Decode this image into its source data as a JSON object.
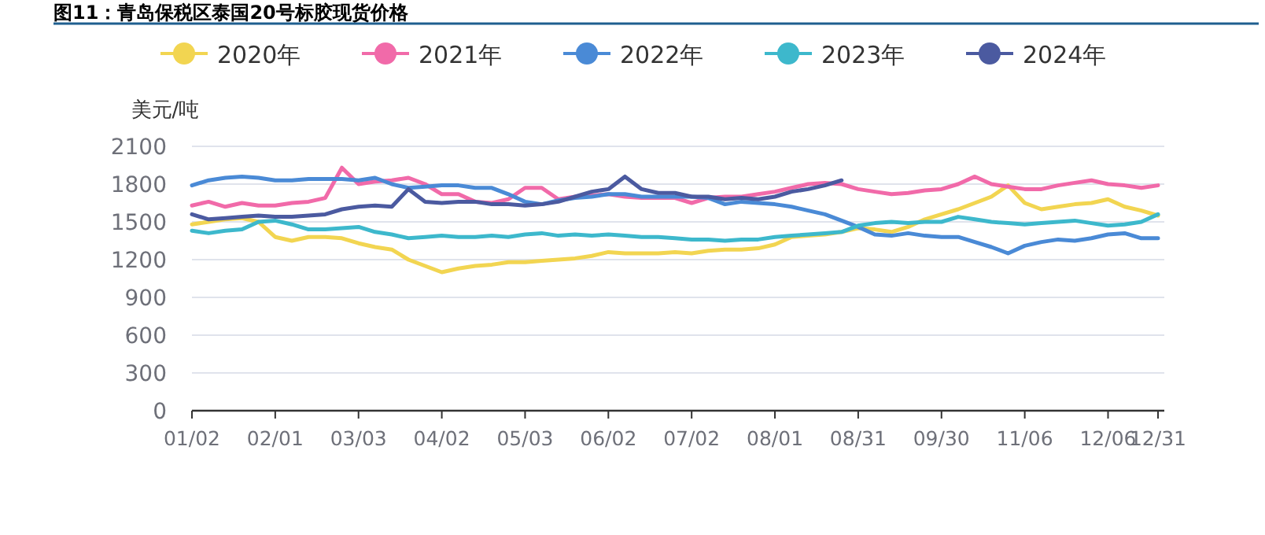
{
  "chart_data": {
    "type": "line",
    "title": "图11：青岛保税区泰国20号标胶现货价格",
    "ylabel": "美元/吨",
    "categories": [
      "01/02",
      null,
      null,
      null,
      null,
      "02/01",
      null,
      null,
      null,
      null,
      "03/03",
      null,
      null,
      null,
      null,
      "04/02",
      null,
      null,
      null,
      null,
      "05/03",
      null,
      null,
      null,
      null,
      "06/02",
      null,
      null,
      null,
      null,
      "07/02",
      null,
      null,
      null,
      null,
      "08/01",
      null,
      null,
      null,
      null,
      "08/31",
      null,
      null,
      null,
      null,
      "09/30",
      null,
      null,
      null,
      null,
      "11/06",
      null,
      null,
      null,
      null,
      "12/06",
      null,
      null,
      "12/31"
    ],
    "series": [
      {
        "name": "2020年",
        "color": "#f2d551",
        "values": [
          1480,
          1500,
          1520,
          1530,
          1500,
          1380,
          1350,
          1380,
          1380,
          1370,
          1330,
          1300,
          1280,
          1200,
          1150,
          1100,
          1130,
          1150,
          1160,
          1180,
          1180,
          1190,
          1200,
          1210,
          1230,
          1260,
          1250,
          1250,
          1250,
          1260,
          1250,
          1270,
          1280,
          1280,
          1290,
          1320,
          1380,
          1390,
          1400,
          1420,
          1450,
          1440,
          1420,
          1460,
          1520,
          1560,
          1600,
          1650,
          1700,
          1790,
          1650,
          1600,
          1620,
          1640,
          1650,
          1680,
          1620,
          1590,
          1550
        ]
      },
      {
        "name": "2021年",
        "color": "#f16aa9",
        "values": [
          1630,
          1660,
          1620,
          1650,
          1630,
          1630,
          1650,
          1660,
          1690,
          1930,
          1800,
          1820,
          1830,
          1850,
          1800,
          1720,
          1720,
          1660,
          1650,
          1680,
          1770,
          1770,
          1680,
          1700,
          1710,
          1720,
          1700,
          1690,
          1690,
          1690,
          1650,
          1690,
          1700,
          1700,
          1720,
          1740,
          1770,
          1800,
          1810,
          1800,
          1760,
          1740,
          1720,
          1730,
          1750,
          1760,
          1800,
          1860,
          1800,
          1780,
          1760,
          1760,
          1790,
          1810,
          1830,
          1800,
          1790,
          1770,
          1790
        ]
      },
      {
        "name": "2022年",
        "color": "#4a8ad6",
        "values": [
          1790,
          1830,
          1850,
          1860,
          1850,
          1830,
          1830,
          1840,
          1840,
          1840,
          1830,
          1850,
          1800,
          1770,
          1780,
          1790,
          1790,
          1770,
          1770,
          1720,
          1660,
          1640,
          1670,
          1690,
          1700,
          1720,
          1720,
          1700,
          1700,
          1700,
          1700,
          1690,
          1640,
          1660,
          1650,
          1640,
          1620,
          1590,
          1560,
          1510,
          1460,
          1400,
          1390,
          1410,
          1390,
          1380,
          1380,
          1340,
          1300,
          1250,
          1310,
          1340,
          1360,
          1350,
          1370,
          1400,
          1410,
          1370,
          1370
        ]
      },
      {
        "name": "2023年",
        "color": "#3db8cc",
        "values": [
          1430,
          1410,
          1430,
          1440,
          1500,
          1510,
          1480,
          1440,
          1440,
          1450,
          1460,
          1420,
          1400,
          1370,
          1380,
          1390,
          1380,
          1380,
          1390,
          1380,
          1400,
          1410,
          1390,
          1400,
          1390,
          1400,
          1390,
          1380,
          1380,
          1370,
          1360,
          1360,
          1350,
          1360,
          1360,
          1380,
          1390,
          1400,
          1410,
          1420,
          1470,
          1490,
          1500,
          1490,
          1500,
          1500,
          1540,
          1520,
          1500,
          1490,
          1480,
          1490,
          1500,
          1510,
          1490,
          1470,
          1480,
          1500,
          1560
        ]
      },
      {
        "name": "2024年",
        "color": "#4b5aa0",
        "values": [
          1560,
          1520,
          1530,
          1540,
          1550,
          1540,
          1540,
          1550,
          1560,
          1600,
          1620,
          1630,
          1620,
          1760,
          1660,
          1650,
          1660,
          1660,
          1640,
          1640,
          1630,
          1640,
          1660,
          1700,
          1740,
          1760,
          1860,
          1760,
          1730,
          1730,
          1700,
          1700,
          1680,
          1690,
          1680,
          1700,
          1740,
          1760,
          1790,
          1830,
          null,
          null,
          null,
          null,
          null,
          null,
          null,
          null,
          null,
          null,
          null,
          null,
          null,
          null,
          null,
          null,
          null,
          null,
          null
        ]
      }
    ],
    "ylim": [
      0,
      2100
    ],
    "yticks": [
      0,
      300,
      600,
      900,
      1200,
      1500,
      1800,
      2100
    ],
    "grid": "y",
    "legend": "top"
  }
}
